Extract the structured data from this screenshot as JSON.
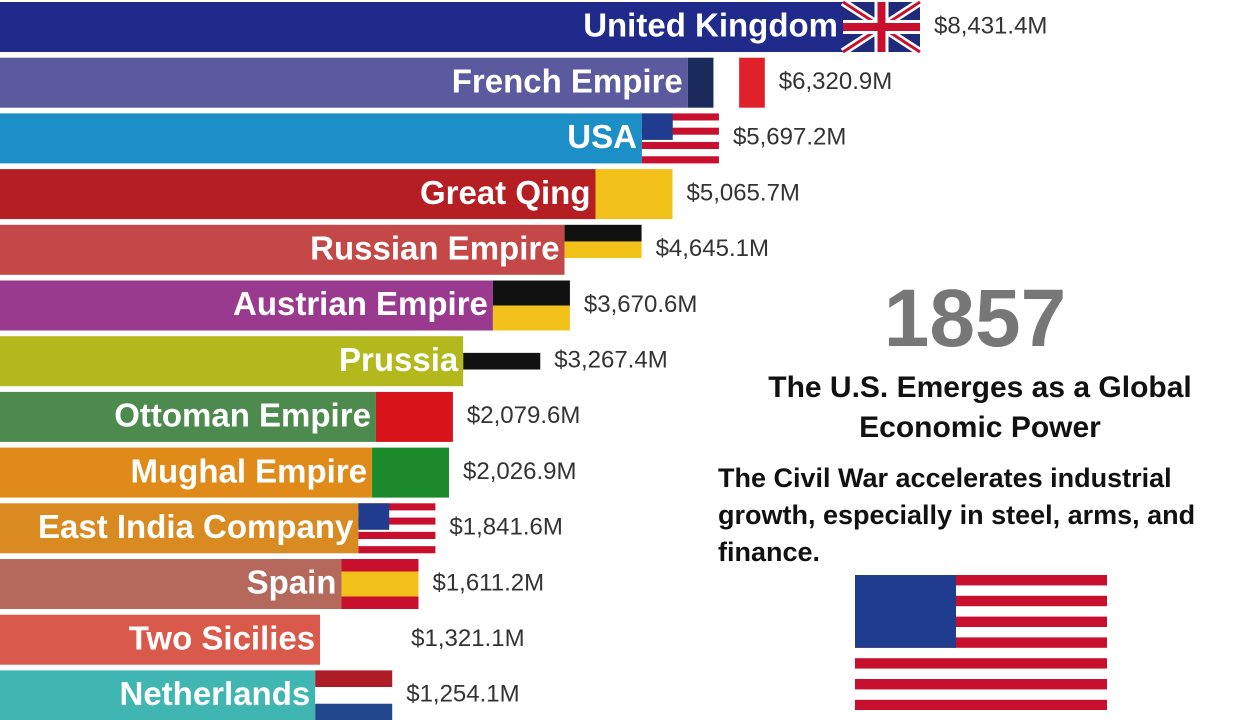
{
  "chart_data": {
    "type": "bar",
    "orientation": "horizontal",
    "categories": [
      "United Kingdom",
      "French Empire",
      "USA",
      "Great Qing",
      "Russian Empire",
      "Austrian Empire",
      "Prussia",
      "Ottoman Empire",
      "Mughal Empire",
      "East India Company",
      "Spain",
      "Two Sicilies",
      "Netherlands"
    ],
    "values": [
      8431.4,
      6320.9,
      5697.2,
      5065.7,
      4645.1,
      3670.6,
      3267.4,
      2079.6,
      2026.9,
      1841.6,
      1611.2,
      1321.1,
      1254.1
    ],
    "value_labels": [
      "$8,431.4M",
      "$6,320.9M",
      "$5,697.2M",
      "$5,065.7M",
      "$4,645.1M",
      "$3,670.6M",
      "$3,267.4M",
      "$2,079.6M",
      "$2,026.9M",
      "$1,841.6M",
      "$1,611.2M",
      "$1,321.1M",
      "$1,254.1M"
    ],
    "colors": [
      "#1f2a8a",
      "#5b5a9e",
      "#1b8fc6",
      "#b51e22",
      "#c44848",
      "#9a3a8e",
      "#b3b81c",
      "#4c8a4e",
      "#e08a1a",
      "#d98a20",
      "#b5695c",
      "#d9594b",
      "#3fb6b1"
    ],
    "annotations": {
      "year": "1857",
      "headline": "The U.S. Emerges as a Global Economic Power",
      "description": "The Civil War accelerates industrial growth, especially in steel, arms, and finance."
    }
  }
}
